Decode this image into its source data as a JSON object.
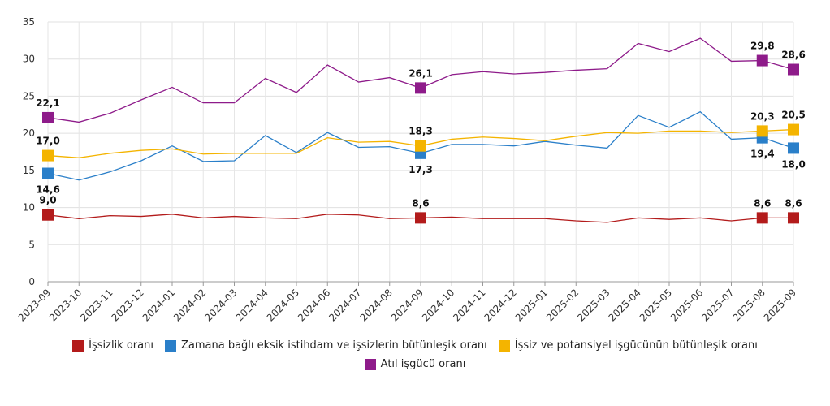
{
  "chart_data": {
    "type": "line",
    "categories": [
      "2023-09",
      "2023-10",
      "2023-11",
      "2023-12",
      "2024-01",
      "2024-02",
      "2024-03",
      "2024-04",
      "2024-05",
      "2024-06",
      "2024-07",
      "2024-08",
      "2024-09",
      "2024-10",
      "2024-11",
      "2024-12",
      "2025-01",
      "2025-02",
      "2025-03",
      "2025-04",
      "2025-05",
      "2025-06",
      "2025-07",
      "2025-08",
      "2025-09"
    ],
    "ylim": [
      0,
      35
    ],
    "yticks": [
      0,
      5,
      10,
      15,
      20,
      25,
      30,
      35
    ],
    "grid": true,
    "series": [
      {
        "name": "İşsizlik oranı",
        "color": "#b31b1b",
        "values": [
          9.0,
          8.5,
          8.9,
          8.8,
          9.1,
          8.6,
          8.8,
          8.6,
          8.5,
          9.1,
          9.0,
          8.5,
          8.6,
          8.7,
          8.5,
          8.5,
          8.5,
          8.2,
          8.0,
          8.6,
          8.4,
          8.6,
          8.2,
          8.6,
          8.6
        ],
        "value_labels": [
          "9,0",
          null,
          null,
          null,
          null,
          null,
          null,
          null,
          null,
          null,
          null,
          null,
          "8,6",
          null,
          null,
          null,
          null,
          null,
          null,
          null,
          null,
          null,
          null,
          "8,6",
          "8,6"
        ]
      },
      {
        "name": "Zamana bağlı eksik istihdam ve işsizlerin bütünleşik oranı",
        "color": "#2a7fc9",
        "values": [
          14.6,
          13.7,
          14.8,
          16.3,
          18.3,
          16.2,
          16.3,
          19.7,
          17.4,
          20.1,
          18.1,
          18.2,
          17.3,
          18.5,
          18.5,
          18.3,
          18.9,
          18.4,
          18.0,
          22.4,
          20.8,
          22.9,
          19.2,
          19.4,
          18.0
        ],
        "value_labels": [
          "14,6",
          null,
          null,
          null,
          null,
          null,
          null,
          null,
          null,
          null,
          null,
          null,
          "17,3",
          null,
          null,
          null,
          null,
          null,
          null,
          null,
          null,
          null,
          null,
          "19,4",
          "18,0"
        ]
      },
      {
        "name": "İşsiz ve potansiyel işgücünün bütünleşik oranı",
        "color": "#f4b400",
        "values": [
          17.0,
          16.7,
          17.3,
          17.7,
          17.9,
          17.2,
          17.3,
          17.3,
          17.3,
          19.4,
          18.8,
          18.9,
          18.3,
          19.2,
          19.5,
          19.3,
          19.0,
          19.6,
          20.1,
          20.0,
          20.3,
          20.3,
          20.1,
          20.3,
          20.5
        ],
        "value_labels": [
          "17,0",
          null,
          null,
          null,
          null,
          null,
          null,
          null,
          null,
          null,
          null,
          null,
          "18,3",
          null,
          null,
          null,
          null,
          null,
          null,
          null,
          null,
          null,
          null,
          "20,3",
          "20,5"
        ]
      },
      {
        "name": "Atıl işgücü oranı",
        "color": "#8e1b8a",
        "values": [
          22.1,
          21.5,
          22.7,
          24.5,
          26.2,
          24.1,
          24.1,
          27.4,
          25.5,
          29.2,
          26.9,
          27.5,
          26.1,
          27.9,
          28.3,
          28.0,
          28.2,
          28.5,
          28.7,
          32.1,
          31.0,
          32.8,
          29.7,
          29.8,
          28.6
        ],
        "value_labels": [
          "22,1",
          null,
          null,
          null,
          null,
          null,
          null,
          null,
          null,
          null,
          null,
          null,
          "26,1",
          null,
          null,
          null,
          null,
          null,
          null,
          null,
          null,
          null,
          null,
          "29,8",
          "28,6"
        ]
      }
    ]
  }
}
